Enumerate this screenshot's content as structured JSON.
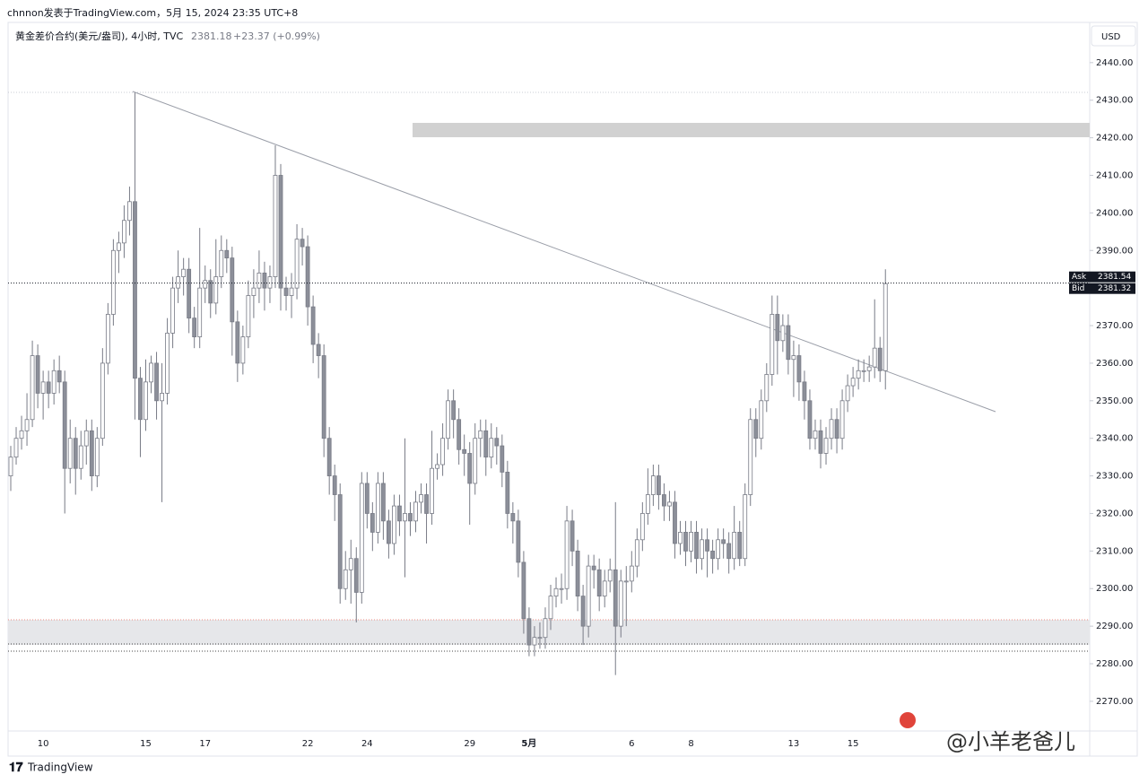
{
  "header": {
    "byline": "chnnon发表于TradingView.com，5月 15, 2024 23:35 UTC+8",
    "brand": "TradingView",
    "watermark": "@小羊老爸儿"
  },
  "chart_data": {
    "type": "candlestick",
    "symbol": "黄金差价合约(美元/盎司), 4小时, TVC",
    "change": "+23.37 (+0.99%)",
    "currency": "USD",
    "quote": {
      "ask_label": "Ask",
      "ask": 2381.54,
      "bid_label": "Bid",
      "bid": 2381.32
    },
    "up_color": "#ffffff",
    "down_color": "#8c8f99",
    "wick_color": "#787b86",
    "grid": false,
    "ylim": [
      2262.1,
      2450.7
    ],
    "yticks": [
      {
        "value": 2270,
        "label": "2270.00"
      },
      {
        "value": 2280,
        "label": "2280.00"
      },
      {
        "value": 2290,
        "label": "2290.00"
      },
      {
        "value": 2300,
        "label": "2300.00"
      },
      {
        "value": 2310,
        "label": "2310.00"
      },
      {
        "value": 2320,
        "label": "2320.00"
      },
      {
        "value": 2330,
        "label": "2330.00"
      },
      {
        "value": 2340,
        "label": "2340.00"
      },
      {
        "value": 2350,
        "label": "2350.00"
      },
      {
        "value": 2360,
        "label": "2360.00"
      },
      {
        "value": 2370,
        "label": "2370.00"
      },
      {
        "value": 2380,
        "label": "2380.00"
      },
      {
        "value": 2390,
        "label": "2390.00"
      },
      {
        "value": 2400,
        "label": "2400.00"
      },
      {
        "value": 2410,
        "label": "2410.00"
      },
      {
        "value": 2420,
        "label": "2420.00"
      },
      {
        "value": 2430,
        "label": "2430.00"
      },
      {
        "value": 2440,
        "label": "2440.00"
      }
    ],
    "categories": [
      null,
      null,
      null,
      null,
      null,
      null,
      "10",
      null,
      null,
      null,
      null,
      null,
      null,
      null,
      null,
      null,
      null,
      null,
      null,
      null,
      null,
      null,
      null,
      null,
      null,
      "15",
      null,
      null,
      null,
      null,
      null,
      null,
      null,
      null,
      null,
      null,
      "17",
      null,
      null,
      null,
      null,
      null,
      null,
      null,
      null,
      null,
      null,
      null,
      null,
      null,
      null,
      null,
      null,
      null,
      null,
      "22",
      null,
      null,
      null,
      null,
      null,
      null,
      null,
      null,
      null,
      null,
      "24",
      null,
      null,
      null,
      null,
      null,
      null,
      null,
      null,
      null,
      null,
      null,
      null,
      null,
      null,
      null,
      null,
      null,
      null,
      "29",
      null,
      null,
      null,
      null,
      null,
      null,
      null,
      null,
      null,
      null,
      "5月",
      null,
      null,
      null,
      null,
      null,
      null,
      null,
      null,
      null,
      null,
      null,
      null,
      null,
      null,
      null,
      null,
      null,
      null,
      "6",
      null,
      null,
      null,
      null,
      null,
      null,
      null,
      null,
      null,
      null,
      "8",
      null,
      null,
      null,
      null,
      null,
      null,
      null,
      null,
      null,
      null,
      null,
      null,
      null,
      null,
      null,
      null,
      null,
      null,
      "13",
      null,
      null,
      null,
      null,
      null,
      null,
      null,
      null,
      null,
      null,
      "15",
      null,
      null,
      null,
      null,
      null,
      null
    ],
    "open": [
      2330,
      2335,
      2340,
      2342,
      2345,
      2362,
      2352,
      2355,
      2352,
      2358,
      2355,
      2332,
      2340,
      2332,
      2338,
      2342,
      2330,
      2340,
      2360,
      2373,
      2390,
      2392,
      2398,
      2403,
      2356,
      2345,
      2355,
      2360,
      2350,
      2352,
      2368,
      2380,
      2383,
      2385,
      2372,
      2367,
      2380,
      2382,
      2376,
      2383,
      2390,
      2388,
      2371,
      2360,
      2367,
      2378,
      2380,
      2384,
      2380,
      2383,
      2410,
      2380,
      2378,
      2380,
      2393,
      2391,
      2375,
      2365,
      2362,
      2340,
      2330,
      2325,
      2300,
      2305,
      2308,
      2299,
      2328,
      2320,
      2315,
      2328,
      2318,
      2312,
      2322,
      2318,
      2320,
      2318,
      2323,
      2325,
      2320,
      2332,
      2333,
      2340,
      2350,
      2345,
      2337,
      2336,
      2328,
      2340,
      2342,
      2335,
      2340,
      2338,
      2331,
      2320,
      2318,
      2307,
      2292,
      2285,
      2287,
      2287,
      2292,
      2298,
      2300,
      2300,
      2318,
      2310,
      2298,
      2290,
      2306,
      2305,
      2298,
      2302,
      2305,
      2290,
      2302,
      2302,
      2306,
      2313,
      2320,
      2325,
      2330,
      2325,
      2322,
      2323,
      2312,
      2315,
      2310,
      2315,
      2308,
      2313,
      2310,
      2308,
      2313,
      2312,
      2308,
      2315,
      2308,
      2325,
      2345,
      2340,
      2350,
      2357,
      2373,
      2366,
      2370,
      2361,
      2362,
      2355,
      2350,
      2340,
      2342,
      2336,
      2340,
      2345,
      2340,
      2350,
      2354,
      2356,
      2358,
      2358,
      2359,
      2364,
      2358
    ],
    "high": [
      2338,
      2343,
      2346,
      2352,
      2366,
      2365,
      2358,
      2358,
      2361,
      2362,
      2358,
      2345,
      2343,
      2342,
      2345,
      2345,
      2343,
      2364,
      2376,
      2393,
      2395,
      2402,
      2407,
      2432,
      2359,
      2361,
      2362,
      2363,
      2360,
      2372,
      2383,
      2390,
      2388,
      2388,
      2375,
      2396,
      2386,
      2385,
      2393,
      2394,
      2393,
      2391,
      2374,
      2370,
      2382,
      2385,
      2390,
      2387,
      2386,
      2418,
      2413,
      2383,
      2384,
      2397,
      2396,
      2394,
      2378,
      2368,
      2365,
      2343,
      2333,
      2328,
      2310,
      2313,
      2311,
      2331,
      2331,
      2323,
      2331,
      2331,
      2321,
      2325,
      2325,
      2340,
      2323,
      2326,
      2328,
      2328,
      2342,
      2336,
      2344,
      2353,
      2353,
      2348,
      2341,
      2339,
      2344,
      2345,
      2345,
      2344,
      2343,
      2341,
      2334,
      2323,
      2321,
      2310,
      2295,
      2290,
      2291,
      2295,
      2301,
      2303,
      2304,
      2322,
      2321,
      2313,
      2301,
      2309,
      2309,
      2308,
      2305,
      2308,
      2323,
      2305,
      2306,
      2310,
      2316,
      2323,
      2332,
      2333,
      2333,
      2328,
      2326,
      2326,
      2318,
      2318,
      2318,
      2318,
      2316,
      2316,
      2313,
      2316,
      2316,
      2315,
      2322,
      2318,
      2328,
      2348,
      2348,
      2353,
      2360,
      2378,
      2378,
      2373,
      2373,
      2366,
      2365,
      2358,
      2353,
      2345,
      2345,
      2343,
      2348,
      2348,
      2353,
      2357,
      2359,
      2361,
      2361,
      2362,
      2377,
      2367,
      2385
    ],
    "low": [
      2326,
      2333,
      2337,
      2338,
      2343,
      2348,
      2345,
      2348,
      2349,
      2352,
      2320,
      2328,
      2325,
      2329,
      2333,
      2326,
      2327,
      2338,
      2357,
      2370,
      2384,
      2388,
      2394,
      2345,
      2335,
      2342,
      2352,
      2345,
      2323,
      2349,
      2364,
      2376,
      2378,
      2368,
      2364,
      2364,
      2376,
      2372,
      2373,
      2380,
      2384,
      2362,
      2355,
      2357,
      2364,
      2372,
      2376,
      2374,
      2376,
      2380,
      2374,
      2374,
      2372,
      2377,
      2386,
      2370,
      2360,
      2356,
      2335,
      2325,
      2318,
      2296,
      2297,
      2296,
      2291,
      2296,
      2316,
      2310,
      2312,
      2313,
      2308,
      2309,
      2314,
      2303,
      2314,
      2315,
      2320,
      2312,
      2317,
      2329,
      2330,
      2337,
      2340,
      2333,
      2330,
      2317,
      2325,
      2335,
      2330,
      2332,
      2333,
      2327,
      2316,
      2312,
      2303,
      2288,
      2282,
      2282,
      2284,
      2284,
      2289,
      2295,
      2296,
      2297,
      2306,
      2294,
      2285,
      2287,
      2300,
      2294,
      2295,
      2299,
      2277,
      2287,
      2290,
      2299,
      2303,
      2310,
      2317,
      2322,
      2321,
      2318,
      2318,
      2308,
      2309,
      2306,
      2307,
      2304,
      2305,
      2303,
      2304,
      2305,
      2308,
      2304,
      2305,
      2306,
      2306,
      2322,
      2335,
      2337,
      2347,
      2354,
      2357,
      2363,
      2357,
      2351,
      2350,
      2345,
      2337,
      2337,
      2332,
      2333,
      2337,
      2336,
      2337,
      2347,
      2351,
      2353,
      2355,
      2355,
      2356,
      2355,
      2353
    ],
    "close": [
      2335,
      2340,
      2342,
      2345,
      2362,
      2352,
      2355,
      2352,
      2358,
      2355,
      2332,
      2340,
      2332,
      2338,
      2342,
      2330,
      2340,
      2360,
      2373,
      2390,
      2392,
      2398,
      2403,
      2356,
      2345,
      2355,
      2360,
      2350,
      2352,
      2368,
      2380,
      2383,
      2385,
      2372,
      2367,
      2380,
      2382,
      2376,
      2383,
      2390,
      2388,
      2371,
      2360,
      2367,
      2378,
      2380,
      2384,
      2380,
      2383,
      2410,
      2380,
      2378,
      2380,
      2393,
      2391,
      2375,
      2365,
      2362,
      2340,
      2330,
      2325,
      2300,
      2305,
      2308,
      2299,
      2328,
      2320,
      2315,
      2328,
      2318,
      2312,
      2322,
      2318,
      2320,
      2318,
      2323,
      2325,
      2320,
      2332,
      2333,
      2340,
      2350,
      2345,
      2337,
      2336,
      2328,
      2340,
      2342,
      2335,
      2340,
      2338,
      2331,
      2320,
      2318,
      2307,
      2292,
      2285,
      2287,
      2287,
      2292,
      2298,
      2300,
      2300,
      2318,
      2310,
      2298,
      2290,
      2306,
      2305,
      2298,
      2302,
      2305,
      2290,
      2302,
      2302,
      2306,
      2313,
      2320,
      2325,
      2330,
      2325,
      2322,
      2323,
      2312,
      2315,
      2310,
      2315,
      2308,
      2313,
      2310,
      2308,
      2313,
      2312,
      2308,
      2315,
      2308,
      2325,
      2345,
      2340,
      2350,
      2357,
      2373,
      2366,
      2370,
      2361,
      2362,
      2355,
      2350,
      2340,
      2342,
      2336,
      2340,
      2345,
      2340,
      2350,
      2354,
      2356,
      2358,
      2358,
      2359,
      2364,
      2358,
      2381.18
    ]
  }
}
